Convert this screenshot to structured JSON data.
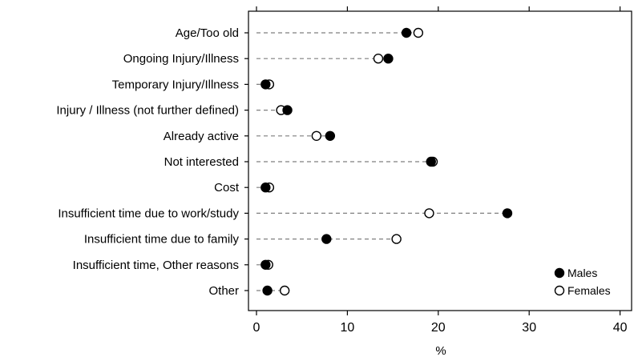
{
  "chart_data": {
    "type": "scatter",
    "subtype": "dot-plot",
    "title": "",
    "xlabel": "%",
    "ylabel": "",
    "xlim": [
      0,
      40
    ],
    "xticks": [
      0,
      10,
      20,
      30,
      40
    ],
    "grid": false,
    "legend_position": "bottom-right",
    "categories": [
      "Age/Too old",
      "Ongoing Injury/Illness",
      "Temporary Injury/Illness",
      "Injury / Illness (not further defined)",
      "Already active",
      "Not interested",
      "Cost",
      "Insufficient time due to work/study",
      "Insufficient time due to family",
      "Insufficient time, Other reasons",
      "Other"
    ],
    "series": [
      {
        "name": "Males",
        "marker": "filled-circle",
        "values": [
          16.5,
          14.5,
          1.0,
          3.4,
          8.1,
          19.2,
          1.0,
          27.6,
          7.7,
          1.0,
          1.2
        ]
      },
      {
        "name": "Females",
        "marker": "open-circle",
        "values": [
          17.8,
          13.4,
          1.4,
          2.7,
          6.6,
          19.4,
          1.4,
          19.0,
          15.4,
          1.3,
          3.1
        ]
      }
    ]
  },
  "colors": {
    "marker": "#000000",
    "connector": "#7f7f7f"
  }
}
